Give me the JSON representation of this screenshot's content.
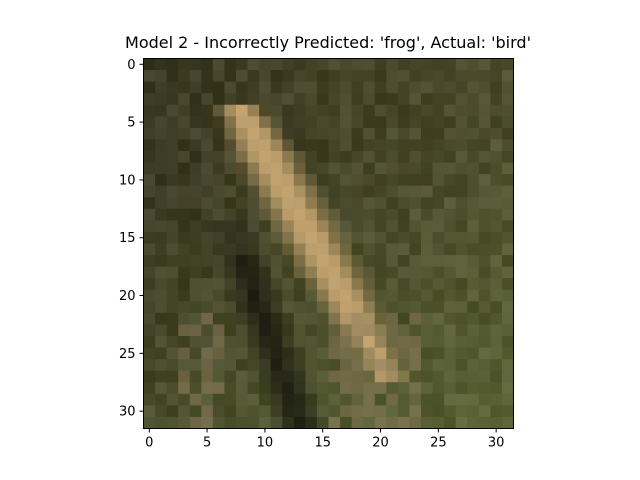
{
  "figure": {
    "title": "Model 2 - Incorrectly Predicted: 'frog', Actual: 'bird'"
  },
  "image": {
    "rows": 32,
    "cols": 32,
    "axes": {
      "x_ticks": [
        0,
        5,
        10,
        15,
        20,
        25,
        30
      ],
      "y_ticks": [
        0,
        5,
        10,
        15,
        20,
        25,
        30
      ]
    },
    "palette": {
      "frame": "#000000",
      "bg_dark": "#2e2e1c",
      "bg_mid": "#52502f",
      "bg_green": "#62703a",
      "bird_light": "#c4a571",
      "bird_mid": "#9a8354",
      "shadow": "#14140c"
    }
  }
}
